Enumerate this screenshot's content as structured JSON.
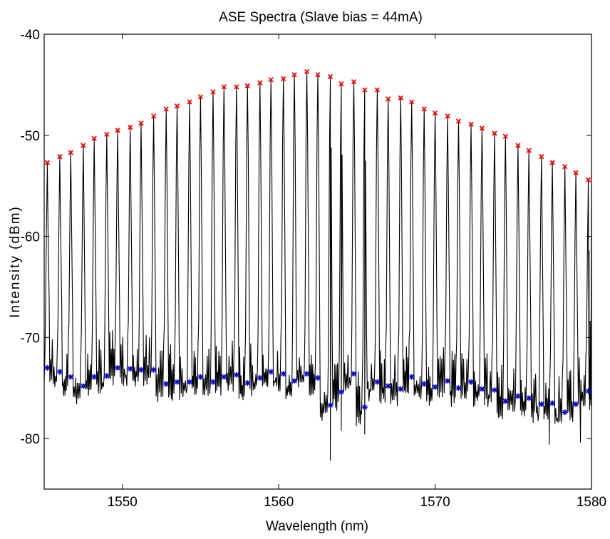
{
  "chart_data": {
    "type": "line",
    "title": "ASE Spectra (Slave bias = 44mA)",
    "xlabel": "Wavelength (nm)",
    "ylabel": "Intensity (dBm)",
    "xlim": [
      1545,
      1580
    ],
    "ylim": [
      -85,
      -40
    ],
    "xticks": [
      1550,
      1560,
      1570,
      1580
    ],
    "yticks": [
      -40,
      -50,
      -60,
      -70,
      -80
    ],
    "grid": false,
    "series": [
      {
        "marker": "x",
        "color": "#ff0000",
        "x": [
          1545.2,
          1546.0,
          1546.7,
          1547.5,
          1548.2,
          1549.0,
          1549.7,
          1550.5,
          1551.2,
          1552.0,
          1552.8,
          1553.5,
          1554.3,
          1555.0,
          1555.8,
          1556.5,
          1557.3,
          1558.0,
          1558.8,
          1559.5,
          1560.3,
          1561.0,
          1561.8,
          1562.5,
          1563.3,
          1564.0,
          1564.8,
          1565.5,
          1566.3,
          1567.0,
          1567.8,
          1568.5,
          1569.3,
          1570.0,
          1570.8,
          1571.5,
          1572.3,
          1573.0,
          1573.8,
          1574.5,
          1575.3,
          1576.0,
          1576.8,
          1577.5,
          1578.3,
          1579.0,
          1579.8
        ],
        "y": [
          -52.7,
          -52.1,
          -51.7,
          -51.0,
          -50.3,
          -49.9,
          -49.5,
          -49.2,
          -48.8,
          -48.1,
          -47.4,
          -47.1,
          -46.7,
          -46.2,
          -45.7,
          -45.2,
          -45.2,
          -45.1,
          -44.8,
          -44.5,
          -44.4,
          -44.0,
          -43.7,
          -44.0,
          -44.2,
          -44.9,
          -44.7,
          -45.5,
          -45.5,
          -46.4,
          -46.3,
          -46.7,
          -47.4,
          -47.8,
          -48.1,
          -48.6,
          -48.9,
          -49.3,
          -49.8,
          -50.1,
          -51.0,
          -51.5,
          -52.1,
          -52.7,
          -53.1,
          -53.7,
          -54.4
        ]
      },
      {
        "marker": "*",
        "color": "#0000cc",
        "x": [
          1545.2,
          1546.0,
          1546.7,
          1547.5,
          1548.2,
          1549.0,
          1549.7,
          1550.5,
          1551.2,
          1552.0,
          1552.8,
          1553.5,
          1554.3,
          1555.0,
          1555.8,
          1556.5,
          1557.3,
          1558.0,
          1558.8,
          1559.5,
          1560.3,
          1561.0,
          1561.8,
          1562.5,
          1563.3,
          1564.0,
          1564.8,
          1565.5,
          1566.3,
          1567.0,
          1567.8,
          1568.5,
          1569.3,
          1570.0,
          1570.8,
          1571.5,
          1572.3,
          1573.0,
          1573.8,
          1574.5,
          1575.3,
          1576.0,
          1576.8,
          1577.5,
          1578.3,
          1579.0,
          1579.8
        ],
        "y": [
          -73.0,
          -73.4,
          -73.9,
          -74.8,
          -73.9,
          -73.8,
          -73.0,
          -73.1,
          -73.2,
          -73.2,
          -74.6,
          -74.4,
          -74.4,
          -73.9,
          -74.4,
          -73.9,
          -73.7,
          -74.5,
          -74.0,
          -73.4,
          -73.6,
          -74.3,
          -73.6,
          -74.0,
          -76.7,
          -75.4,
          -73.6,
          -76.9,
          -74.4,
          -74.8,
          -75.1,
          -73.9,
          -74.6,
          -74.9,
          -74.3,
          -75.0,
          -74.4,
          -75.1,
          -75.2,
          -76.3,
          -75.8,
          -76.0,
          -76.6,
          -76.5,
          -77.4,
          -76.6,
          -75.3
        ]
      }
    ]
  }
}
